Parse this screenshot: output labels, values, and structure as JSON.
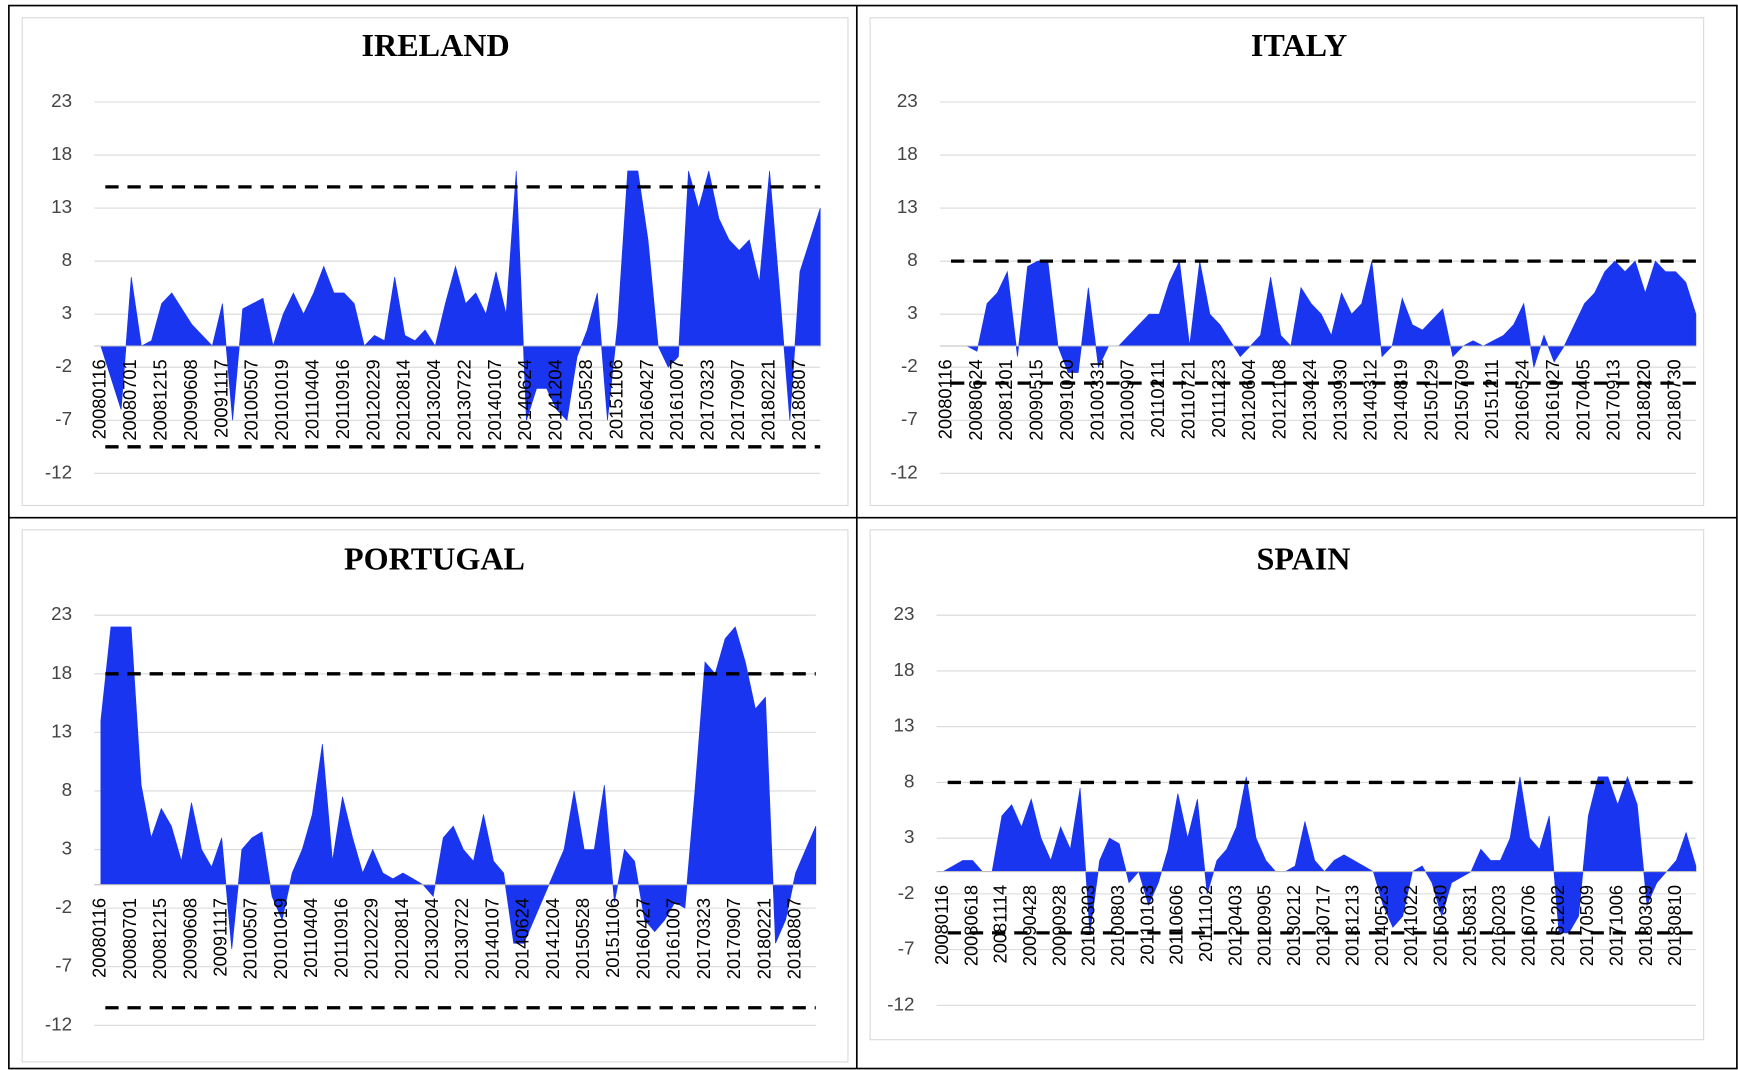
{
  "chart_data": [
    {
      "type": "area",
      "title": "IRELAND",
      "color": "#1a35f0",
      "ylim": [
        -12,
        23
      ],
      "yticks": [
        -12,
        -7,
        -2,
        3,
        8,
        13,
        18,
        23
      ],
      "grid": true,
      "thresholds": [
        15,
        -9.5
      ],
      "categories": [
        "20080116",
        null,
        null,
        "20080701",
        null,
        null,
        "20081215",
        null,
        null,
        "20090608",
        null,
        null,
        "20091117",
        null,
        null,
        "20100507",
        null,
        null,
        "20101019",
        null,
        null,
        "20110404",
        null,
        null,
        "20110916",
        null,
        null,
        "20120229",
        null,
        null,
        "20120814",
        null,
        null,
        "20130204",
        null,
        null,
        "20130722",
        null,
        null,
        "20140107",
        null,
        null,
        "20140624",
        null,
        null,
        "20141204",
        null,
        null,
        "20150528",
        null,
        null,
        "20151106",
        null,
        null,
        "20160427",
        null,
        null,
        "20161007",
        null,
        null,
        "20170323",
        null,
        null,
        "20170907",
        null,
        null,
        "20180221",
        null,
        null,
        "20180807",
        null,
        null
      ],
      "values": [
        0,
        -3,
        -6,
        6.5,
        0,
        0.5,
        4,
        5,
        3.5,
        2,
        1,
        0,
        4,
        -7,
        3.5,
        4,
        4.5,
        0,
        3,
        5,
        3,
        5,
        7.5,
        5,
        5,
        4,
        0,
        1,
        0.5,
        6.5,
        1,
        0.5,
        1.5,
        0,
        4,
        7.5,
        4,
        5,
        3,
        7,
        3,
        16.5,
        -7,
        -4,
        -4,
        -6,
        -7,
        -1,
        1.5,
        5,
        -7,
        2,
        16.5,
        16.5,
        10,
        0,
        -2,
        -1,
        16.5,
        13,
        16.5,
        12,
        10,
        9,
        10,
        6,
        16.5,
        5,
        -7,
        7,
        10,
        13
      ]
    },
    {
      "type": "area",
      "title": "ITALY",
      "color": "#1a35f0",
      "ylim": [
        -12,
        23
      ],
      "yticks": [
        -12,
        -7,
        -2,
        3,
        8,
        13,
        18,
        23
      ],
      "grid": true,
      "thresholds": [
        8,
        -3.5
      ],
      "categories": [
        "20080116",
        null,
        null,
        "20080624",
        null,
        null,
        "20081201",
        null,
        null,
        "20090515",
        null,
        null,
        "20091020",
        null,
        null,
        "20100331",
        null,
        null,
        "20100907",
        null,
        null,
        "20110211",
        null,
        null,
        "20110721",
        null,
        null,
        "20111223",
        null,
        null,
        "20120604",
        null,
        null,
        "20121108",
        null,
        null,
        "20130424",
        null,
        null,
        "20130930",
        null,
        null,
        "20140312",
        null,
        null,
        "20140819",
        null,
        null,
        "20150129",
        null,
        null,
        "20150709",
        null,
        null,
        "20151211",
        null,
        null,
        "20160524",
        null,
        null,
        "20161027",
        null,
        null,
        "20170405",
        null,
        null,
        "20170913",
        null,
        null,
        "20180220",
        null,
        null,
        "20180730",
        null,
        null
      ],
      "values": [
        0,
        0,
        0,
        -0.5,
        4,
        5,
        7,
        -1,
        7.5,
        8,
        8,
        0,
        -2.5,
        -2.5,
        5.5,
        -2,
        0,
        0,
        1,
        2,
        3,
        3,
        6,
        8,
        0,
        8,
        3,
        2,
        0.5,
        -1,
        0,
        1,
        6.5,
        1,
        0,
        5.5,
        4,
        3,
        1,
        5,
        3,
        4,
        8,
        -1,
        0,
        4.5,
        2,
        1.5,
        2.5,
        3.5,
        -1,
        0,
        0.5,
        0,
        0.5,
        1,
        2,
        4,
        -2,
        1,
        -1.5,
        0,
        2,
        4,
        5,
        7,
        8,
        7,
        8,
        5,
        8,
        7,
        7,
        6,
        3
      ]
    },
    {
      "type": "area",
      "title": "PORTUGAL",
      "color": "#1a35f0",
      "ylim": [
        -12,
        23
      ],
      "yticks": [
        -12,
        -7,
        -2,
        3,
        8,
        13,
        18,
        23
      ],
      "grid": true,
      "thresholds": [
        18,
        -10.5
      ],
      "categories": [
        "20080116",
        null,
        null,
        "20080701",
        null,
        null,
        "20081215",
        null,
        null,
        "20090608",
        null,
        null,
        "20091117",
        null,
        null,
        "20100507",
        null,
        null,
        "20101019",
        null,
        null,
        "20110404",
        null,
        null,
        "20110916",
        null,
        null,
        "20120229",
        null,
        null,
        "20120814",
        null,
        null,
        "20130204",
        null,
        null,
        "20130722",
        null,
        null,
        "20140107",
        null,
        null,
        "20140624",
        null,
        null,
        "20141204",
        null,
        null,
        "20150528",
        null,
        null,
        "20151106",
        null,
        null,
        "20160427",
        null,
        null,
        "20161007",
        null,
        null,
        "20170323",
        null,
        null,
        "20170907",
        null,
        null,
        "20180221",
        null,
        null,
        "20180807",
        null,
        null
      ],
      "values": [
        14,
        22,
        22,
        22,
        8.5,
        4,
        6.5,
        5,
        2,
        7,
        3,
        1.5,
        4,
        -5.5,
        3,
        4,
        4.5,
        -1,
        -3,
        1,
        3,
        6,
        12,
        2,
        7.5,
        4,
        1,
        3,
        1,
        0.5,
        1,
        0.5,
        0,
        -1,
        4,
        5,
        3,
        2,
        6,
        2,
        1,
        -5,
        -5,
        -3,
        -1,
        1,
        3,
        8,
        3,
        3,
        8.5,
        -1.5,
        3,
        2,
        -3,
        -4,
        -3,
        -1.5,
        -2,
        8,
        19,
        18,
        21,
        22,
        19,
        15,
        16,
        -5,
        -3,
        1,
        3,
        5
      ]
    },
    {
      "type": "area",
      "title": "SPAIN",
      "color": "#1a35f0",
      "ylim": [
        -12,
        23
      ],
      "yticks": [
        -12,
        -7,
        -2,
        3,
        8,
        13,
        18,
        23
      ],
      "grid": true,
      "thresholds": [
        8,
        -5.5
      ],
      "categories": [
        "20080116",
        null,
        null,
        "20080618",
        null,
        null,
        "20081114",
        null,
        null,
        "20090428",
        null,
        null,
        "20090928",
        null,
        null,
        "20100303",
        null,
        null,
        "20100803",
        null,
        null,
        "20110103",
        null,
        null,
        "20110606",
        null,
        null,
        "20111102",
        null,
        null,
        "20120403",
        null,
        null,
        "20120905",
        null,
        null,
        "20130212",
        null,
        null,
        "20130717",
        null,
        null,
        "20131213",
        null,
        null,
        "20140523",
        null,
        null,
        "20141022",
        null,
        null,
        "20150330",
        null,
        null,
        "20150831",
        null,
        null,
        "20160203",
        null,
        null,
        "20160706",
        null,
        null,
        "20161202",
        null,
        null,
        "20170509",
        null,
        null,
        "20171006",
        null,
        null,
        "20180309",
        null,
        null,
        "20180810",
        null,
        null
      ],
      "values": [
        0,
        0.5,
        1,
        1,
        0,
        0,
        5,
        6,
        4,
        6.5,
        3,
        1,
        4,
        2,
        7.5,
        -5.5,
        1,
        3,
        2.5,
        -1,
        0,
        -3,
        -1,
        2,
        7,
        3,
        6.5,
        -2,
        1,
        2,
        4,
        8.5,
        3,
        1,
        0,
        0,
        0.5,
        4.5,
        1,
        0,
        1,
        1.5,
        1,
        0.5,
        0,
        -3,
        -5,
        -4,
        0,
        0.5,
        -1,
        -4,
        -1,
        -0.5,
        0,
        2,
        1,
        1,
        3,
        8.5,
        3,
        2,
        5,
        -5.5,
        -5.5,
        -4,
        5,
        8.5,
        8.5,
        6,
        8.5,
        6,
        -3,
        -1,
        0,
        1,
        3.5,
        0.5
      ]
    }
  ]
}
